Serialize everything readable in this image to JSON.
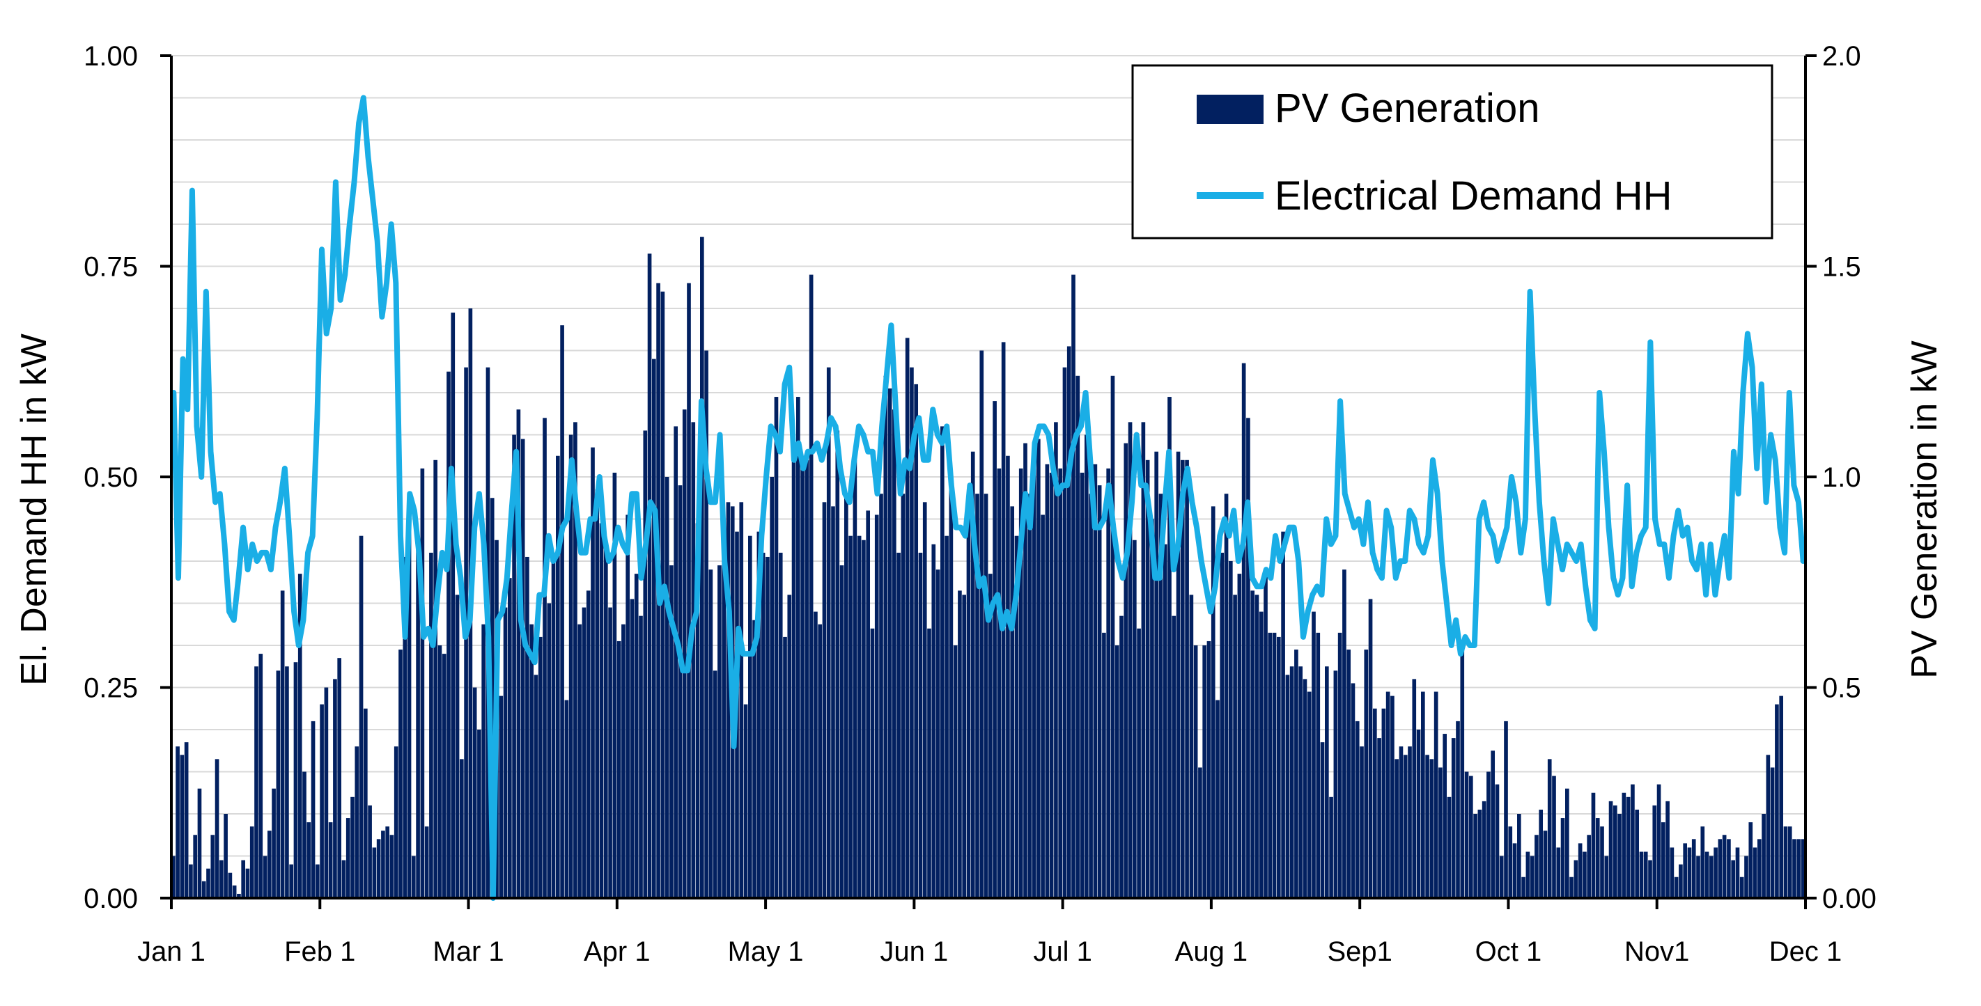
{
  "chart_data": {
    "type": "bar",
    "title": "",
    "x_ticks": [
      "Jan 1",
      "Feb 1",
      "Mar 1",
      "Apr 1",
      "May 1",
      "Jun 1",
      "Jul 1",
      "Aug 1",
      "Sep1",
      "Oct 1",
      "Nov1",
      "Dec 1"
    ],
    "x_range_days": [
      0,
      334
    ],
    "left_axis": {
      "label": "El. Demand HH in kW",
      "ylim": [
        0,
        1
      ],
      "ticks": [
        "0.00",
        "0.25",
        "0.50",
        "0.75",
        "1.00"
      ]
    },
    "right_axis": {
      "label": "PV Generation in kW",
      "ylim": [
        0,
        2
      ],
      "ticks": [
        "0.00",
        "0.5",
        "1.0",
        "1.5",
        "2.0"
      ]
    },
    "legend": {
      "position": "top-right",
      "items": [
        "PV Generation",
        "Electrical Demand HH"
      ]
    },
    "colors": {
      "pv": "#022060",
      "demand": "#1aaee6",
      "grid": "#d9d9d9"
    },
    "grid": true,
    "series": [
      {
        "name": "PV Generation",
        "axis": "right",
        "kind": "bar",
        "values": [
          0.1,
          0.36,
          0.34,
          0.37,
          0.08,
          0.15,
          0.26,
          0.04,
          0.07,
          0.15,
          0.33,
          0.09,
          0.2,
          0.06,
          0.03,
          0.01,
          0.09,
          0.07,
          0.17,
          0.55,
          0.58,
          0.1,
          0.16,
          0.26,
          0.54,
          0.73,
          0.55,
          0.08,
          0.56,
          0.77,
          0.3,
          0.18,
          0.42,
          0.08,
          0.46,
          0.5,
          0.18,
          0.52,
          0.57,
          0.09,
          0.19,
          0.24,
          0.36,
          0.86,
          0.45,
          0.22,
          0.12,
          0.14,
          0.16,
          0.17,
          0.15,
          0.36,
          0.59,
          0.81,
          0.95,
          0.1,
          0.86,
          1.02,
          0.17,
          0.82,
          1.04,
          0.6,
          0.58,
          1.25,
          1.39,
          0.72,
          0.33,
          1.26,
          1.4,
          0.5,
          0.4,
          0.65,
          1.26,
          0.95,
          0.85,
          0.48,
          0.69,
          0.76,
          1.1,
          1.16,
          1.09,
          0.81,
          0.65,
          0.53,
          0.62,
          1.14,
          0.7,
          0.81,
          1.05,
          1.36,
          0.47,
          1.1,
          1.13,
          0.65,
          0.69,
          0.73,
          1.07,
          0.97,
          0.89,
          0.83,
          0.69,
          1.01,
          0.61,
          0.65,
          0.91,
          0.71,
          0.77,
          0.67,
          1.11,
          1.53,
          1.28,
          1.46,
          1.44,
          1.0,
          0.79,
          1.12,
          0.98,
          1.16,
          1.46,
          1.13,
          0.89,
          1.57,
          1.3,
          0.78,
          0.54,
          0.79,
          0.8,
          0.94,
          0.93,
          0.87,
          0.94,
          0.46,
          0.86,
          0.66,
          0.87,
          0.82,
          0.81,
          1.0,
          1.19,
          0.82,
          0.62,
          0.72,
          1.06,
          1.19,
          1.03,
          1.04,
          1.48,
          0.68,
          0.65,
          0.94,
          1.26,
          0.93,
          1.11,
          0.79,
          0.95,
          0.86,
          1.04,
          0.86,
          0.85,
          0.92,
          0.64,
          0.91,
          0.96,
          1.24,
          1.21,
          1.16,
          0.82,
          0.96,
          1.33,
          1.26,
          1.22,
          0.82,
          0.94,
          0.64,
          0.84,
          0.78,
          1.12,
          0.86,
          0.99,
          0.6,
          0.73,
          0.72,
          0.94,
          1.06,
          0.96,
          1.3,
          0.96,
          0.77,
          1.18,
          1.02,
          1.32,
          1.05,
          0.93,
          0.86,
          1.02,
          1.08,
          0.96,
          1.06,
          1.09,
          0.91,
          1.03,
          1.01,
          1.13,
          1.02,
          1.26,
          1.31,
          1.48,
          1.24,
          1.01,
          1.1,
          0.96,
          1.03,
          0.98,
          0.63,
          1.02,
          1.24,
          0.6,
          0.67,
          1.08,
          1.13,
          0.85,
          0.64,
          1.13,
          1.04,
          0.9,
          1.06,
          0.96,
          0.84,
          1.19,
          0.67,
          1.06,
          1.04,
          1.04,
          0.72,
          0.6,
          0.31,
          0.6,
          0.61,
          0.93,
          0.47,
          0.82,
          0.96,
          0.8,
          0.72,
          0.77,
          1.27,
          1.14,
          0.73,
          0.72,
          0.68,
          0.78,
          0.63,
          0.63,
          0.62,
          0.87,
          0.53,
          0.55,
          0.59,
          0.55,
          0.52,
          0.49,
          0.68,
          0.63,
          0.37,
          0.55,
          0.24,
          0.54,
          0.63,
          0.78,
          0.59,
          0.51,
          0.42,
          0.36,
          0.59,
          0.71,
          0.45,
          0.38,
          0.45,
          0.49,
          0.48,
          0.33,
          0.36,
          0.34,
          0.36,
          0.52,
          0.4,
          0.49,
          0.34,
          0.33,
          0.49,
          0.31,
          0.39,
          0.24,
          0.38,
          0.42,
          0.6,
          0.3,
          0.29,
          0.2,
          0.21,
          0.23,
          0.3,
          0.35,
          0.27,
          0.1,
          0.42,
          0.17,
          0.13,
          0.2,
          0.05,
          0.11,
          0.1,
          0.15,
          0.21,
          0.16,
          0.33,
          0.29,
          0.12,
          0.19,
          0.26,
          0.05,
          0.09,
          0.13,
          0.11,
          0.15,
          0.25,
          0.19,
          0.17,
          0.1,
          0.23,
          0.22,
          0.2,
          0.25,
          0.24,
          0.27,
          0.21,
          0.11,
          0.11,
          0.09,
          0.22,
          0.27,
          0.18,
          0.23,
          0.12,
          0.05,
          0.08,
          0.13,
          0.12,
          0.14,
          0.1,
          0.17,
          0.11,
          0.1,
          0.12,
          0.14,
          0.15,
          0.14,
          0.09,
          0.12,
          0.05,
          0.1,
          0.18,
          0.12,
          0.14,
          0.2,
          0.34,
          0.31,
          0.46,
          0.48,
          0.17,
          0.17,
          0.14,
          0.14,
          0.14
        ]
      },
      {
        "name": "Electrical Demand HH",
        "axis": "left",
        "kind": "line",
        "values": [
          0.6,
          0.38,
          0.64,
          0.58,
          0.84,
          0.56,
          0.5,
          0.72,
          0.53,
          0.47,
          0.48,
          0.42,
          0.34,
          0.33,
          0.38,
          0.44,
          0.39,
          0.42,
          0.4,
          0.41,
          0.41,
          0.39,
          0.44,
          0.47,
          0.51,
          0.43,
          0.34,
          0.3,
          0.33,
          0.41,
          0.43,
          0.57,
          0.77,
          0.67,
          0.7,
          0.85,
          0.71,
          0.74,
          0.8,
          0.85,
          0.92,
          0.95,
          0.88,
          0.83,
          0.78,
          0.69,
          0.73,
          0.8,
          0.73,
          0.43,
          0.31,
          0.48,
          0.46,
          0.41,
          0.31,
          0.32,
          0.3,
          0.36,
          0.41,
          0.39,
          0.51,
          0.42,
          0.38,
          0.31,
          0.33,
          0.44,
          0.48,
          0.42,
          0.31,
          0.0,
          0.33,
          0.34,
          0.38,
          0.46,
          0.53,
          0.33,
          0.3,
          0.29,
          0.28,
          0.36,
          0.36,
          0.43,
          0.4,
          0.41,
          0.44,
          0.45,
          0.52,
          0.46,
          0.41,
          0.41,
          0.45,
          0.45,
          0.5,
          0.43,
          0.4,
          0.41,
          0.44,
          0.42,
          0.41,
          0.48,
          0.48,
          0.38,
          0.42,
          0.47,
          0.46,
          0.35,
          0.37,
          0.34,
          0.32,
          0.3,
          0.27,
          0.27,
          0.32,
          0.34,
          0.59,
          0.51,
          0.47,
          0.47,
          0.55,
          0.4,
          0.34,
          0.18,
          0.32,
          0.29,
          0.29,
          0.29,
          0.31,
          0.43,
          0.5,
          0.56,
          0.55,
          0.53,
          0.61,
          0.63,
          0.52,
          0.54,
          0.51,
          0.53,
          0.53,
          0.54,
          0.52,
          0.54,
          0.57,
          0.56,
          0.51,
          0.48,
          0.47,
          0.52,
          0.56,
          0.55,
          0.53,
          0.53,
          0.48,
          0.56,
          0.62,
          0.68,
          0.58,
          0.48,
          0.52,
          0.51,
          0.55,
          0.57,
          0.52,
          0.52,
          0.58,
          0.55,
          0.54,
          0.56,
          0.49,
          0.44,
          0.44,
          0.43,
          0.49,
          0.42,
          0.37,
          0.38,
          0.33,
          0.35,
          0.36,
          0.32,
          0.34,
          0.32,
          0.36,
          0.42,
          0.48,
          0.44,
          0.54,
          0.56,
          0.56,
          0.55,
          0.51,
          0.48,
          0.49,
          0.49,
          0.53,
          0.55,
          0.56,
          0.6,
          0.52,
          0.44,
          0.44,
          0.45,
          0.49,
          0.44,
          0.4,
          0.38,
          0.41,
          0.47,
          0.55,
          0.49,
          0.49,
          0.45,
          0.38,
          0.38,
          0.46,
          0.53,
          0.39,
          0.42,
          0.48,
          0.51,
          0.47,
          0.44,
          0.4,
          0.37,
          0.34,
          0.37,
          0.43,
          0.45,
          0.43,
          0.46,
          0.4,
          0.42,
          0.47,
          0.38,
          0.37,
          0.37,
          0.39,
          0.38,
          0.43,
          0.4,
          0.42,
          0.44,
          0.44,
          0.4,
          0.31,
          0.34,
          0.36,
          0.37,
          0.36,
          0.45,
          0.42,
          0.43,
          0.59,
          0.48,
          0.46,
          0.44,
          0.45,
          0.42,
          0.47,
          0.41,
          0.39,
          0.38,
          0.46,
          0.44,
          0.38,
          0.4,
          0.4,
          0.46,
          0.45,
          0.42,
          0.41,
          0.43,
          0.52,
          0.48,
          0.4,
          0.35,
          0.3,
          0.33,
          0.29,
          0.31,
          0.3,
          0.3,
          0.45,
          0.47,
          0.44,
          0.43,
          0.4,
          0.42,
          0.44,
          0.5,
          0.47,
          0.41,
          0.45,
          0.72,
          0.58,
          0.47,
          0.4,
          0.35,
          0.45,
          0.42,
          0.39,
          0.42,
          0.41,
          0.4,
          0.42,
          0.37,
          0.33,
          0.32,
          0.6,
          0.53,
          0.44,
          0.38,
          0.36,
          0.38,
          0.49,
          0.37,
          0.41,
          0.43,
          0.44,
          0.66,
          0.45,
          0.42,
          0.42,
          0.38,
          0.43,
          0.46,
          0.43,
          0.44,
          0.4,
          0.39,
          0.42,
          0.36,
          0.42,
          0.36,
          0.4,
          0.43,
          0.38,
          0.53,
          0.48,
          0.6,
          0.67,
          0.63,
          0.51,
          0.61,
          0.47,
          0.55,
          0.52,
          0.44,
          0.41,
          0.6,
          0.49,
          0.47,
          0.4
        ]
      }
    ]
  }
}
